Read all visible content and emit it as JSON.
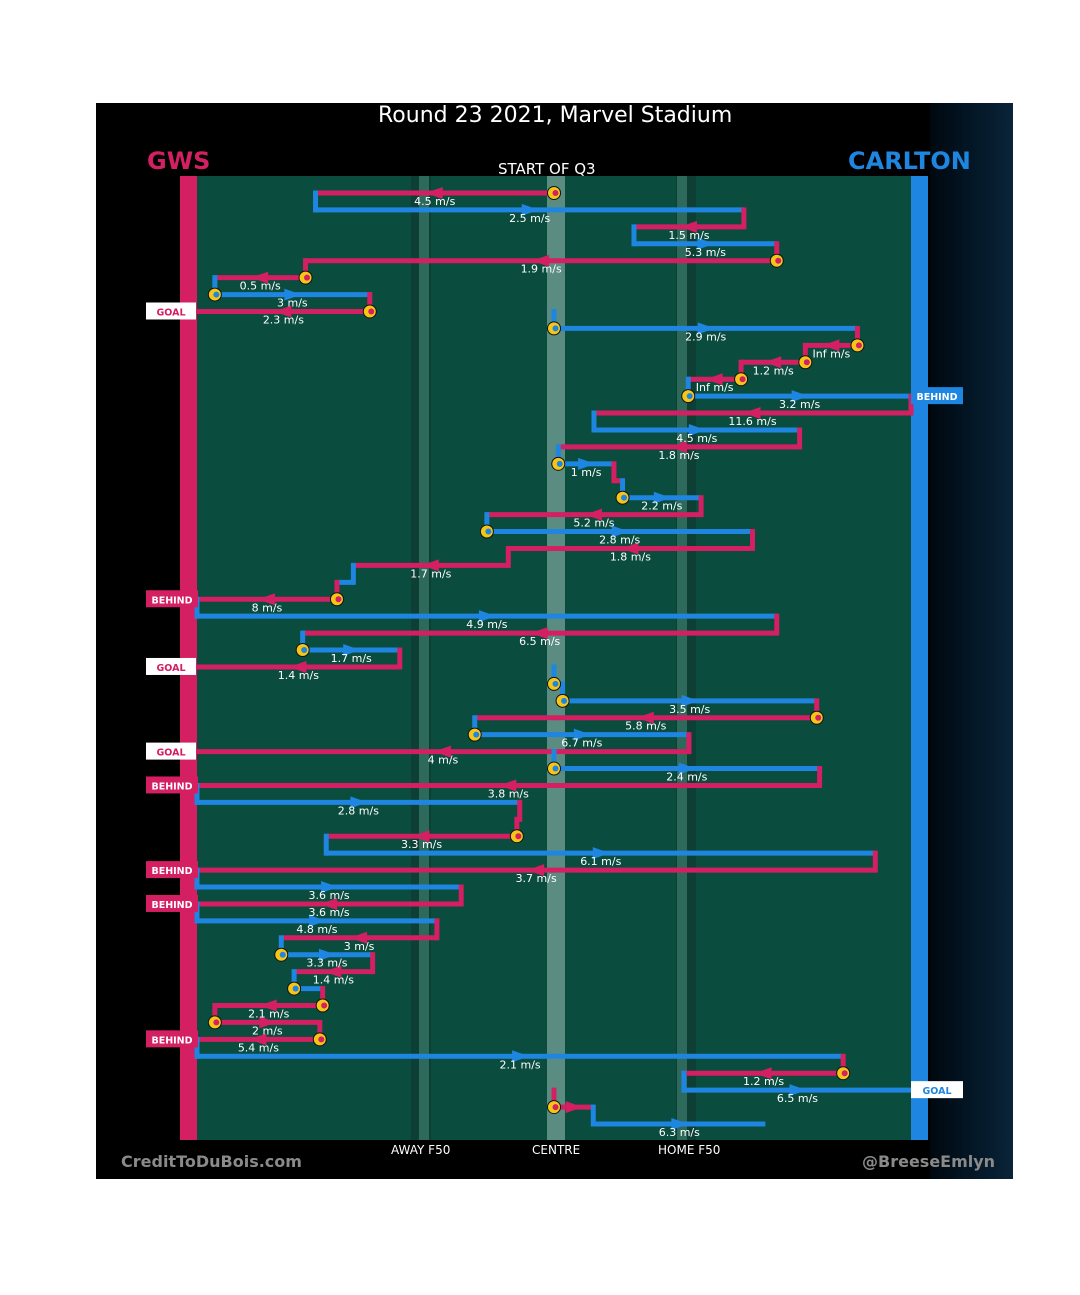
{
  "header": {
    "title": "Round 23 2021, Marvel Stadium",
    "subtitle": "START OF Q3"
  },
  "teams": {
    "home": "GWS",
    "away": "CARLTON",
    "home_color": "#d41f63",
    "away_color": "#1e86e0"
  },
  "axis_labels": {
    "away_f50": "AWAY F50",
    "centre": "CENTRE",
    "home_f50": "HOME F50"
  },
  "credits": {
    "left": "CreditToDuBois.com",
    "right": "@BreeseEmlyn"
  },
  "chart_data": {
    "type": "line",
    "title": "Round 23 2021, Marvel Stadium",
    "subtitle": "START OF Q3",
    "xlabel": "",
    "ylabel": "",
    "x_range": [
      0,
      100
    ],
    "x_ticks": [
      {
        "value": 31.5,
        "label": "AWAY F50"
      },
      {
        "value": 50,
        "label": "CENTRE"
      },
      {
        "value": 68.5,
        "label": "HOME F50"
      }
    ],
    "colors": {
      "GWS": "#d41f63",
      "CARLTON": "#1e86e0"
    },
    "chains": [
      {
        "team": "GWS",
        "start": 50,
        "end": 16.6,
        "speed": "4.5 m/s",
        "stoppage_start": true
      },
      {
        "team": "CARLTON",
        "start": 16.6,
        "end": 76.6,
        "speed": "2.5 m/s"
      },
      {
        "team": "GWS",
        "start": 76.6,
        "end": 61.2,
        "speed": "1.5 m/s"
      },
      {
        "team": "CARLTON",
        "start": 61.2,
        "end": 81.2,
        "speed": "5.3 m/s"
      },
      {
        "team": "GWS",
        "start": 81.2,
        "end": 15.2,
        "speed": "1.9 m/s",
        "stoppage_start": true
      },
      {
        "team": "GWS",
        "start": 15.2,
        "end": 2.5,
        "speed": "0.5 m/s",
        "stoppage_start": true
      },
      {
        "team": "CARLTON",
        "start": 2.5,
        "end": 24.2,
        "speed": "3 m/s",
        "stoppage_start": true
      },
      {
        "team": "GWS",
        "start": 24.2,
        "end": 0,
        "speed": "2.3 m/s",
        "stoppage_start": true,
        "outcome": "GOAL"
      },
      {
        "team": "CARLTON",
        "start": 50,
        "end": 92.5,
        "speed": "2.9 m/s",
        "stoppage_start": true
      },
      {
        "team": "GWS",
        "start": 92.5,
        "end": 85.2,
        "speed": "Inf m/s",
        "stoppage_start": true
      },
      {
        "team": "GWS",
        "start": 85.2,
        "end": 76.2,
        "speed": "1.2 m/s",
        "stoppage_start": true
      },
      {
        "team": "GWS",
        "start": 76.2,
        "end": 68.8,
        "speed": "Inf m/s",
        "stoppage_start": true
      },
      {
        "team": "CARLTON",
        "start": 68.8,
        "end": 100,
        "speed": "3.2 m/s",
        "stoppage_start": true,
        "outcome": "BEHIND"
      },
      {
        "team": "GWS",
        "start": 100,
        "end": 55.6,
        "speed": "11.6 m/s"
      },
      {
        "team": "CARLTON",
        "start": 55.6,
        "end": 84.4,
        "speed": "4.5 m/s"
      },
      {
        "team": "GWS",
        "start": 84.4,
        "end": 50.6,
        "speed": "1.8 m/s"
      },
      {
        "team": "CARLTON",
        "start": 50.6,
        "end": 58.4,
        "speed": "1 m/s",
        "stoppage_start": true
      },
      {
        "team": "GWS",
        "start": 58.4,
        "end": 59.6,
        "speed": ""
      },
      {
        "team": "CARLTON",
        "start": 59.6,
        "end": 70.6,
        "speed": "2.2 m/s",
        "stoppage_start": true
      },
      {
        "team": "GWS",
        "start": 70.6,
        "end": 40.6,
        "speed": "5.2 m/s"
      },
      {
        "team": "CARLTON",
        "start": 40.6,
        "end": 77.8,
        "speed": "2.8 m/s",
        "stoppage_start": true
      },
      {
        "team": "GWS",
        "start": 77.8,
        "end": 43.6,
        "speed": "1.8 m/s"
      },
      {
        "team": "GWS",
        "start": 43.6,
        "end": 21.9,
        "speed": "1.7 m/s"
      },
      {
        "team": "CARLTON",
        "start": 21.9,
        "end": 19.6,
        "speed": ""
      },
      {
        "team": "GWS",
        "start": 19.6,
        "end": 0,
        "speed": "8 m/s",
        "stoppage_start": true,
        "outcome": "BEHIND"
      },
      {
        "team": "CARLTON",
        "start": 0,
        "end": 81.2,
        "speed": "4.9 m/s"
      },
      {
        "team": "GWS",
        "start": 81.2,
        "end": 14.8,
        "speed": "6.5 m/s"
      },
      {
        "team": "CARLTON",
        "start": 14.8,
        "end": 28.4,
        "speed": "1.7 m/s",
        "stoppage_start": true
      },
      {
        "team": "GWS",
        "start": 28.4,
        "end": 0,
        "speed": "1.4 m/s",
        "outcome": "GOAL"
      },
      {
        "team": "CARLTON",
        "start": 50,
        "end": 51.2,
        "speed": "",
        "stoppage_start": true
      },
      {
        "team": "CARLTON",
        "start": 51.2,
        "end": 86.8,
        "speed": "3.5 m/s",
        "stoppage_start": true
      },
      {
        "team": "GWS",
        "start": 86.8,
        "end": 38.9,
        "speed": "5.8 m/s",
        "stoppage_start": true
      },
      {
        "team": "CARLTON",
        "start": 38.9,
        "end": 68.9,
        "speed": "6.7 m/s",
        "stoppage_start": true
      },
      {
        "team": "GWS",
        "start": 68.9,
        "end": 0,
        "speed": "4 m/s",
        "outcome": "GOAL"
      },
      {
        "team": "CARLTON",
        "start": 50,
        "end": 87.2,
        "speed": "2.4 m/s",
        "stoppage_start": true
      },
      {
        "team": "GWS",
        "start": 87.2,
        "end": 0,
        "speed": "3.8 m/s",
        "outcome": "BEHIND"
      },
      {
        "team": "CARLTON",
        "start": 0,
        "end": 45.2,
        "speed": "2.8 m/s"
      },
      {
        "team": "GWS",
        "start": 45.2,
        "end": 44.8,
        "speed": ""
      },
      {
        "team": "GWS",
        "start": 44.8,
        "end": 18.1,
        "speed": "3.3 m/s",
        "stoppage_start": true
      },
      {
        "team": "CARLTON",
        "start": 18.1,
        "end": 95.0,
        "speed": "6.1 m/s"
      },
      {
        "team": "GWS",
        "start": 95.0,
        "end": 0,
        "speed": "3.7 m/s",
        "outcome": "BEHIND"
      },
      {
        "team": "CARLTON",
        "start": 0,
        "end": 37.0,
        "speed": "3.6 m/s"
      },
      {
        "team": "GWS",
        "start": 37.0,
        "end": 0,
        "speed": "3.6 m/s",
        "outcome": "BEHIND"
      },
      {
        "team": "CARLTON",
        "start": 0,
        "end": 33.6,
        "speed": "4.8 m/s"
      },
      {
        "team": "GWS",
        "start": 33.6,
        "end": 11.8,
        "speed": "3 m/s"
      },
      {
        "team": "CARLTON",
        "start": 11.8,
        "end": 24.6,
        "speed": "3.3 m/s",
        "stoppage_start": true
      },
      {
        "team": "GWS",
        "start": 24.6,
        "end": 13.6,
        "speed": "1.4 m/s"
      },
      {
        "team": "CARLTON",
        "start": 13.6,
        "end": 17.6,
        "speed": "",
        "stoppage_start": true
      },
      {
        "team": "GWS",
        "start": 17.6,
        "end": 2.5,
        "speed": "2.1 m/s",
        "stoppage_start": true
      },
      {
        "team": "GWS",
        "start": 2.5,
        "end": 17.2,
        "speed": "2 m/s",
        "stoppage_start": true
      },
      {
        "team": "GWS",
        "start": 17.2,
        "end": 0,
        "speed": "5.4 m/s",
        "stoppage_start": true,
        "outcome": "BEHIND"
      },
      {
        "team": "CARLTON",
        "start": 0,
        "end": 90.5,
        "speed": "2.1 m/s"
      },
      {
        "team": "GWS",
        "start": 90.5,
        "end": 68.2,
        "speed": "1.2 m/s",
        "stoppage_start": true
      },
      {
        "team": "CARLTON",
        "start": 68.2,
        "end": 100,
        "speed": "6.5 m/s",
        "outcome": "GOAL"
      },
      {
        "team": "GWS",
        "start": 50,
        "end": 55.5,
        "speed": "",
        "stoppage_start": true
      },
      {
        "team": "CARLTON",
        "start": 55.5,
        "end": 79.6,
        "speed": "6.3 m/s"
      }
    ]
  }
}
